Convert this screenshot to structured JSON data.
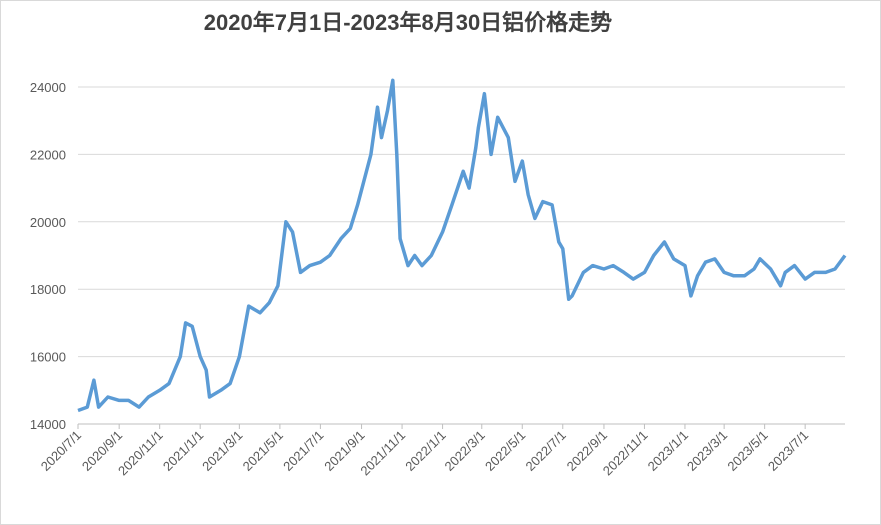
{
  "chart_data": {
    "type": "line",
    "title": "2020年7月1日-2023年8月30日铝价格走势",
    "x": [
      "2020/7/1",
      "2020/7/15",
      "2020/7/25",
      "2020/8/1",
      "2020/8/15",
      "2020/9/1",
      "2020/9/15",
      "2020/10/1",
      "2020/10/15",
      "2020/11/1",
      "2020/11/15",
      "2020/12/2",
      "2020/12/10",
      "2020/12/20",
      "2021/1/1",
      "2021/1/10",
      "2021/1/15",
      "2021/2/1",
      "2021/2/15",
      "2021/3/1",
      "2021/3/15",
      "2021/4/1",
      "2021/4/15",
      "2021/4/28",
      "2021/5/10",
      "2021/5/20",
      "2021/6/1",
      "2021/6/15",
      "2021/7/1",
      "2021/7/15",
      "2021/8/1",
      "2021/8/15",
      "2021/8/26",
      "2021/9/15",
      "2021/9/25",
      "2021/10/1",
      "2021/10/10",
      "2021/10/18",
      "2021/10/24",
      "2021/10/29",
      "2021/11/10",
      "2021/11/20",
      "2021/12/1",
      "2021/12/15",
      "2022/1/1",
      "2022/1/15",
      "2022/2/1",
      "2022/2/10",
      "2022/2/20",
      "2022/2/24",
      "2022/3/5",
      "2022/3/15",
      "2022/3/25",
      "2022/4/10",
      "2022/4/20",
      "2022/5/1",
      "2022/5/10",
      "2022/5/20",
      "2022/6/1",
      "2022/6/15",
      "2022/6/25",
      "2022/7/1",
      "2022/7/10",
      "2022/7/15",
      "2022/8/1",
      "2022/8/15",
      "2022/9/1",
      "2022/9/15",
      "2022/10/1",
      "2022/10/15",
      "2022/11/1",
      "2022/11/15",
      "2022/12/1",
      "2022/12/15",
      "2023/1/1",
      "2023/1/10",
      "2023/1/20",
      "2023/2/1",
      "2023/2/15",
      "2023/3/1",
      "2023/3/15",
      "2023/4/1",
      "2023/4/15",
      "2023/4/24",
      "2023/5/10",
      "2023/5/25",
      "2023/6/1",
      "2023/6/15",
      "2023/7/1",
      "2023/7/15",
      "2023/8/1",
      "2023/8/15",
      "2023/8/30"
    ],
    "series": [
      {
        "color": "#5b9bd5",
        "values": [
          14400,
          14500,
          15300,
          14500,
          14800,
          14700,
          14700,
          14500,
          14800,
          15000,
          15200,
          16000,
          17000,
          16900,
          16000,
          15600,
          14800,
          15000,
          15200,
          16000,
          17500,
          17300,
          17600,
          18100,
          20000,
          19700,
          18500,
          18700,
          18800,
          19000,
          19500,
          19800,
          20500,
          22000,
          23400,
          22500,
          23300,
          24200,
          22000,
          19500,
          18700,
          19000,
          18700,
          19000,
          19700,
          20500,
          21500,
          21000,
          22200,
          22800,
          23800,
          22000,
          23100,
          22500,
          21200,
          21800,
          20800,
          20100,
          20600,
          20500,
          19400,
          19200,
          17700,
          17800,
          18500,
          18700,
          18600,
          18700,
          18500,
          18300,
          18500,
          19000,
          19400,
          18900,
          18700,
          17800,
          18400,
          18800,
          18900,
          18500,
          18400,
          18400,
          18600,
          18900,
          18600,
          18100,
          18500,
          18700,
          18300,
          18500,
          18500,
          18600,
          19000
        ]
      }
    ],
    "xlim": [
      "2020/7/1",
      "2023/8/30"
    ],
    "xticks": [
      "2020/7/1",
      "2020/9/1",
      "2020/11/1",
      "2021/1/1",
      "2021/3/1",
      "2021/5/1",
      "2021/7/1",
      "2021/9/1",
      "2021/11/1",
      "2022/1/1",
      "2022/3/1",
      "2022/5/1",
      "2022/7/1",
      "2022/9/1",
      "2022/11/1",
      "2023/1/1",
      "2023/3/1",
      "2023/5/1",
      "2023/7/1"
    ],
    "ylim": [
      14000,
      24000
    ],
    "yticks": [
      14000,
      16000,
      18000,
      20000,
      22000,
      24000
    ],
    "grid": true
  }
}
